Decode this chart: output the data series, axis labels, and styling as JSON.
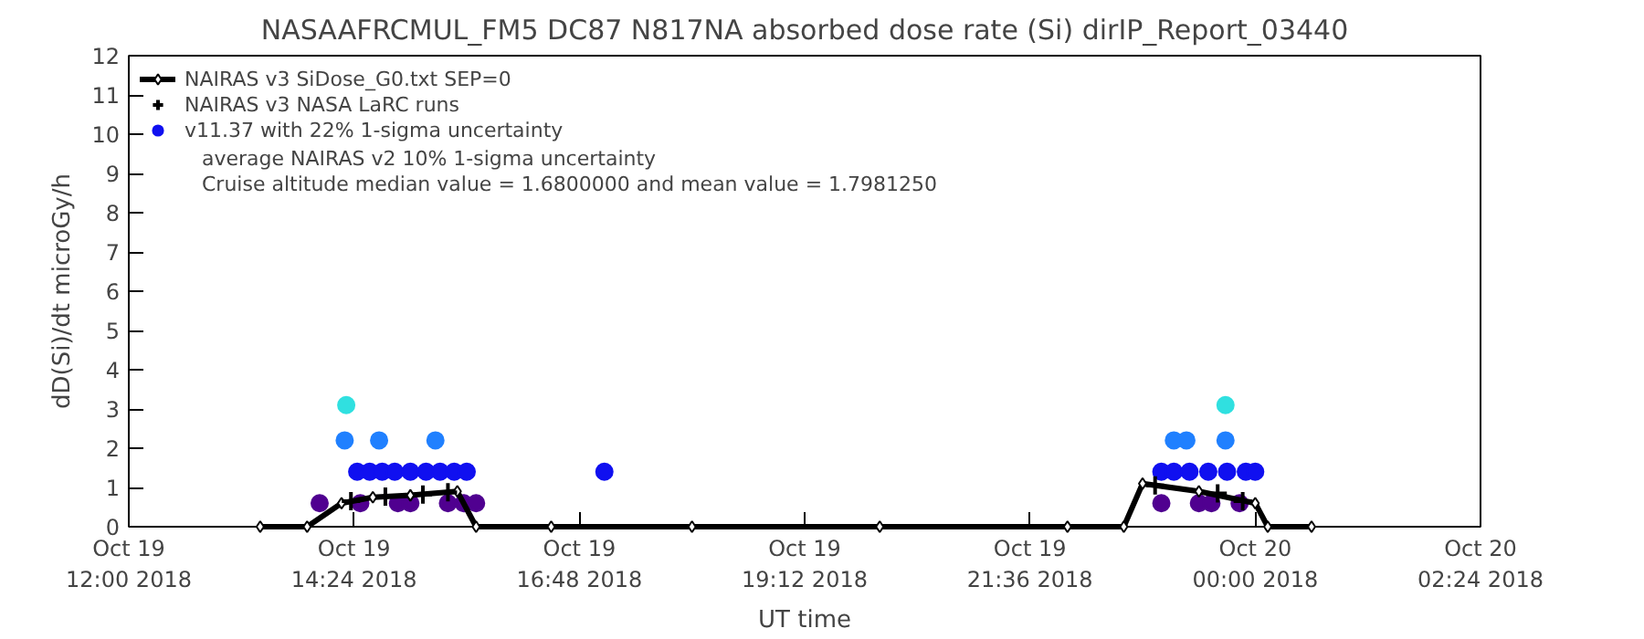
{
  "chart_data": {
    "type": "scatter",
    "title": "NASAAFRCMUL_FM5 DC87 N817NA absorbed dose rate (Si) dirIP_Report_03440",
    "xlabel": "UT time",
    "ylabel": "dD(Si)/dt microGy/h",
    "xlim": [
      "2018-10-19T12:00",
      "2018-10-20T02:24"
    ],
    "ylim": [
      0,
      12
    ],
    "xticks": [
      {
        "value": "2018-10-19T12:00",
        "label": "Oct 19\n12:00 2018"
      },
      {
        "value": "2018-10-19T14:24",
        "label": "Oct 19\n14:24 2018"
      },
      {
        "value": "2018-10-19T16:48",
        "label": "Oct 19\n16:48 2018"
      },
      {
        "value": "2018-10-19T19:12",
        "label": "Oct 19\n19:12 2018"
      },
      {
        "value": "2018-10-19T21:36",
        "label": "Oct 19\n21:36 2018"
      },
      {
        "value": "2018-10-20T00:00",
        "label": "Oct 20\n00:00 2018"
      },
      {
        "value": "2018-10-20T02:24",
        "label": "Oct 20\n02:24 2018"
      }
    ],
    "yticks": [
      0,
      1,
      2,
      3,
      4,
      5,
      6,
      7,
      8,
      9,
      10,
      11,
      12
    ],
    "grid": false,
    "legend": "top left",
    "series": [
      {
        "name": "NAIRAS v3 SiDose_G0.txt SEP=0",
        "type": "line",
        "marker": "diamond",
        "color": "#000000",
        "x": [
          "2018-10-19T13:24",
          "2018-10-19T13:54",
          "2018-10-19T14:16",
          "2018-10-19T14:36",
          "2018-10-19T15:00",
          "2018-10-19T15:30",
          "2018-10-19T15:42",
          "2018-10-19T16:30",
          "2018-10-19T18:00",
          "2018-10-19T20:00",
          "2018-10-19T22:00",
          "2018-10-19T22:36",
          "2018-10-19T22:48",
          "2018-10-19T23:24",
          "2018-10-20T00:00",
          "2018-10-20T00:08",
          "2018-10-20T00:36"
        ],
        "values": [
          0,
          0,
          0.6,
          0.75,
          0.8,
          0.9,
          0,
          0,
          0,
          0,
          0,
          0,
          1.1,
          0.9,
          0.6,
          0,
          0
        ]
      },
      {
        "name": "NAIRAS v3 NASA LaRC runs",
        "type": "scatter",
        "marker": "cross",
        "color": "#000000",
        "x": [
          "2018-10-19T14:22",
          "2018-10-19T14:44",
          "2018-10-19T15:08",
          "2018-10-19T15:24",
          "2018-10-19T22:56",
          "2018-10-19T23:36",
          "2018-10-19T23:52"
        ],
        "values": [
          0.65,
          0.77,
          0.82,
          0.88,
          1.05,
          0.85,
          0.65
        ]
      },
      {
        "name": "v11.37 with 22% 1-sigma uncertainty",
        "marker": "circle",
        "color": "#1010f0",
        "x": [
          "2018-10-19T14:02",
          "2018-10-19T14:19",
          "2018-10-19T14:18",
          "2018-10-19T14:26",
          "2018-10-19T14:34",
          "2018-10-19T14:42",
          "2018-10-19T14:50",
          "2018-10-19T15:00",
          "2018-10-19T15:10",
          "2018-10-19T15:19",
          "2018-10-19T15:28",
          "2018-10-19T15:36",
          "2018-10-19T14:40",
          "2018-10-19T15:16",
          "2018-10-19T14:28",
          "2018-10-19T14:52",
          "2018-10-19T15:00",
          "2018-10-19T15:24",
          "2018-10-19T15:34",
          "2018-10-19T15:42",
          "2018-10-19T17:04",
          "2018-10-19T23:00",
          "2018-10-19T23:24",
          "2018-10-19T23:32",
          "2018-10-19T23:50",
          "2018-10-19T23:00",
          "2018-10-19T23:08",
          "2018-10-19T23:18",
          "2018-10-19T23:30",
          "2018-10-19T23:42",
          "2018-10-19T23:54",
          "2018-10-20T00:00",
          "2018-10-19T23:08",
          "2018-10-19T23:16",
          "2018-10-19T23:41",
          "2018-10-19T23:41"
        ],
        "values": [
          0.6,
          3.1,
          2.2,
          1.4,
          1.4,
          1.4,
          1.4,
          1.4,
          1.4,
          1.4,
          1.4,
          1.4,
          2.2,
          2.2,
          0.6,
          0.6,
          0.6,
          0.6,
          0.6,
          0.6,
          1.4,
          0.6,
          0.6,
          0.6,
          0.6,
          1.4,
          1.4,
          1.4,
          1.4,
          1.4,
          1.4,
          1.4,
          2.2,
          2.2,
          2.2,
          3.1
        ],
        "colors": [
          "#500090",
          "#30e0e0",
          "#2080ff",
          "#1010f0",
          "#1010f0",
          "#1010f0",
          "#1010f0",
          "#1010f0",
          "#1010f0",
          "#1010f0",
          "#1010f0",
          "#1010f0",
          "#2080ff",
          "#2080ff",
          "#500090",
          "#500090",
          "#500090",
          "#500090",
          "#500090",
          "#500090",
          "#1010f0",
          "#500090",
          "#500090",
          "#500090",
          "#500090",
          "#1010f0",
          "#1010f0",
          "#1010f0",
          "#1010f0",
          "#1010f0",
          "#1010f0",
          "#1010f0",
          "#2080ff",
          "#2080ff",
          "#2080ff",
          "#30e0e0"
        ]
      }
    ],
    "annotations": [
      "average NAIRAS v2 10% 1-sigma uncertainty",
      "Cruise altitude median value = 1.6800000 and mean value = 1.7981250"
    ]
  }
}
